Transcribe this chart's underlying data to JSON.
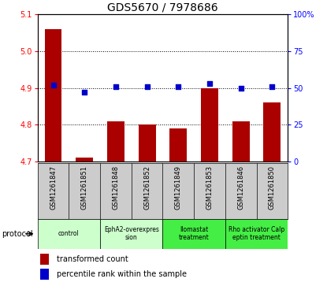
{
  "title": "GDS5670 / 7978686",
  "samples": [
    "GSM1261847",
    "GSM1261851",
    "GSM1261848",
    "GSM1261852",
    "GSM1261849",
    "GSM1261853",
    "GSM1261846",
    "GSM1261850"
  ],
  "transformed_counts": [
    5.06,
    4.71,
    4.81,
    4.8,
    4.79,
    4.9,
    4.81,
    4.86
  ],
  "percentile_ranks": [
    52,
    47,
    51,
    51,
    51,
    53,
    50,
    51
  ],
  "ylim_left": [
    4.7,
    5.1
  ],
  "ylim_right": [
    0,
    100
  ],
  "yticks_left": [
    4.7,
    4.8,
    4.9,
    5.0,
    5.1
  ],
  "yticks_right": [
    0,
    25,
    50,
    75,
    100
  ],
  "bar_color": "#aa0000",
  "dot_color": "#0000cc",
  "bar_bottom": 4.7,
  "groups": [
    {
      "label": "control",
      "indices": [
        0,
        1
      ],
      "color": "#ccffcc"
    },
    {
      "label": "EphA2-overexpres\nsion",
      "indices": [
        2,
        3
      ],
      "color": "#ccffcc"
    },
    {
      "label": "llomastat\ntreatment",
      "indices": [
        4,
        5
      ],
      "color": "#44ee44"
    },
    {
      "label": "Rho activator Calp\neptin treatment",
      "indices": [
        6,
        7
      ],
      "color": "#44ee44"
    }
  ],
  "legend_bar_label": "transformed count",
  "legend_dot_label": "percentile rank within the sample",
  "protocol_label": "protocol",
  "background_color": "#ffffff",
  "sample_bg_color": "#cccccc",
  "right_tick_labels": [
    "0",
    "25",
    "50",
    "75",
    "100%"
  ]
}
